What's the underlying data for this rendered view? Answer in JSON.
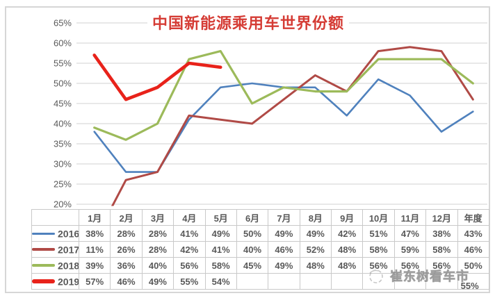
{
  "chart_data": {
    "type": "line",
    "title": "中国新能源乘用车世界份额",
    "categories": [
      "1月",
      "2月",
      "3月",
      "4月",
      "5月",
      "6月",
      "7月",
      "8月",
      "9月",
      "10月",
      "11月",
      "12月",
      "年度"
    ],
    "y_ticks": [
      "65%",
      "60%",
      "55%",
      "50%",
      "45%",
      "40%",
      "35%",
      "30%",
      "25%",
      "20%"
    ],
    "ylim": [
      20,
      65
    ],
    "grid": true,
    "legend_position": "table-left-column",
    "series": [
      {
        "name": "2016",
        "color": "#4f81bd",
        "line_width": 2.6,
        "values": [
          38,
          28,
          28,
          41,
          49,
          50,
          49,
          49,
          42,
          51,
          47,
          38,
          43
        ]
      },
      {
        "name": "2017",
        "color": "#b04a46",
        "line_width": 3,
        "values": [
          11,
          26,
          28,
          42,
          41,
          40,
          46,
          52,
          48,
          58,
          59,
          58,
          46
        ]
      },
      {
        "name": "2018",
        "color": "#9cba5a",
        "line_width": 3.2,
        "values": [
          39,
          36,
          40,
          56,
          58,
          45,
          49,
          48,
          48,
          56,
          56,
          56,
          50
        ]
      },
      {
        "name": "2019",
        "color": "#e8221a",
        "line_width": 4.6,
        "values": [
          57,
          46,
          49,
          55,
          54,
          null,
          null,
          null,
          null,
          null,
          null,
          null,
          null
        ]
      }
    ],
    "table": {
      "rows": [
        {
          "year": "2016",
          "cells": [
            "38%",
            "28%",
            "28%",
            "41%",
            "49%",
            "50%",
            "49%",
            "49%",
            "42%",
            "51%",
            "47%",
            "38%",
            "43%"
          ]
        },
        {
          "year": "2017",
          "cells": [
            "11%",
            "26%",
            "28%",
            "42%",
            "41%",
            "40%",
            "46%",
            "52%",
            "48%",
            "58%",
            "59%",
            "58%",
            "46%"
          ]
        },
        {
          "year": "2018",
          "cells": [
            "39%",
            "36%",
            "40%",
            "56%",
            "58%",
            "45%",
            "49%",
            "48%",
            "48%",
            "56%",
            "56%",
            "56%",
            "50%"
          ]
        },
        {
          "year": "2019",
          "cells": [
            "57%",
            "46%",
            "49%",
            "55%",
            "54%",
            "",
            "",
            "",
            "",
            "",
            "",
            "",
            "55%"
          ]
        }
      ]
    },
    "colors": {
      "title": "#d53c35",
      "gridline": "#d9d9d9",
      "axis_text": "#595959",
      "table_border": "#c9c9c9",
      "table_text": "#595959"
    }
  },
  "watermark": {
    "text": "崔东树看车市"
  }
}
